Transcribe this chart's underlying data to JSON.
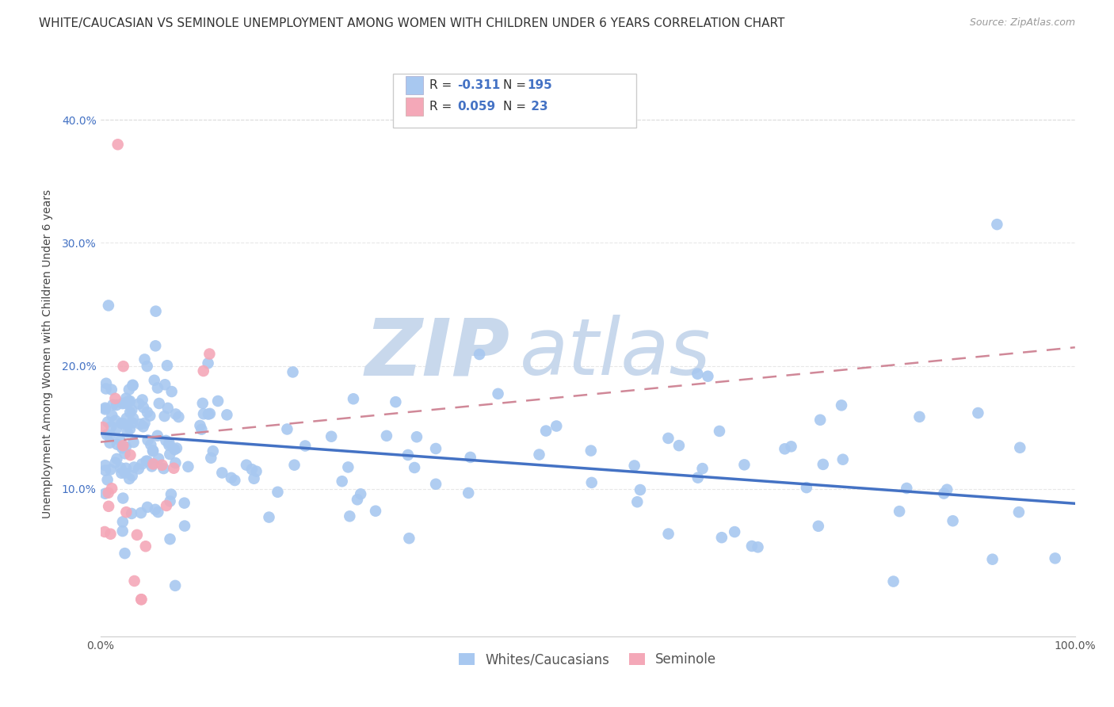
{
  "title": "WHITE/CAUCASIAN VS SEMINOLE UNEMPLOYMENT AMONG WOMEN WITH CHILDREN UNDER 6 YEARS CORRELATION CHART",
  "source": "Source: ZipAtlas.com",
  "ylabel": "Unemployment Among Women with Children Under 6 years",
  "xlim": [
    0,
    1.0
  ],
  "ylim": [
    -0.02,
    0.44
  ],
  "yticks": [
    0.0,
    0.1,
    0.2,
    0.3,
    0.4
  ],
  "blue_R": -0.311,
  "blue_N": 195,
  "pink_R": 0.059,
  "pink_N": 23,
  "blue_color": "#A8C8F0",
  "pink_color": "#F4A8B8",
  "blue_line_color": "#4472C4",
  "pink_line_color": "#D08898",
  "watermark_zip": "ZIP",
  "watermark_atlas": "atlas",
  "watermark_color_zip": "#C8D8E8",
  "watermark_color_atlas": "#C8D8E8",
  "legend_label_blue": "Whites/Caucasians",
  "legend_label_pink": "Seminole",
  "title_fontsize": 11,
  "axis_label_fontsize": 10,
  "tick_fontsize": 10,
  "background_color": "#FFFFFF",
  "grid_color": "#E8E8E8",
  "blue_line_start_y": 0.145,
  "blue_line_end_y": 0.088,
  "pink_line_start_y": 0.138,
  "pink_line_end_y": 0.215
}
